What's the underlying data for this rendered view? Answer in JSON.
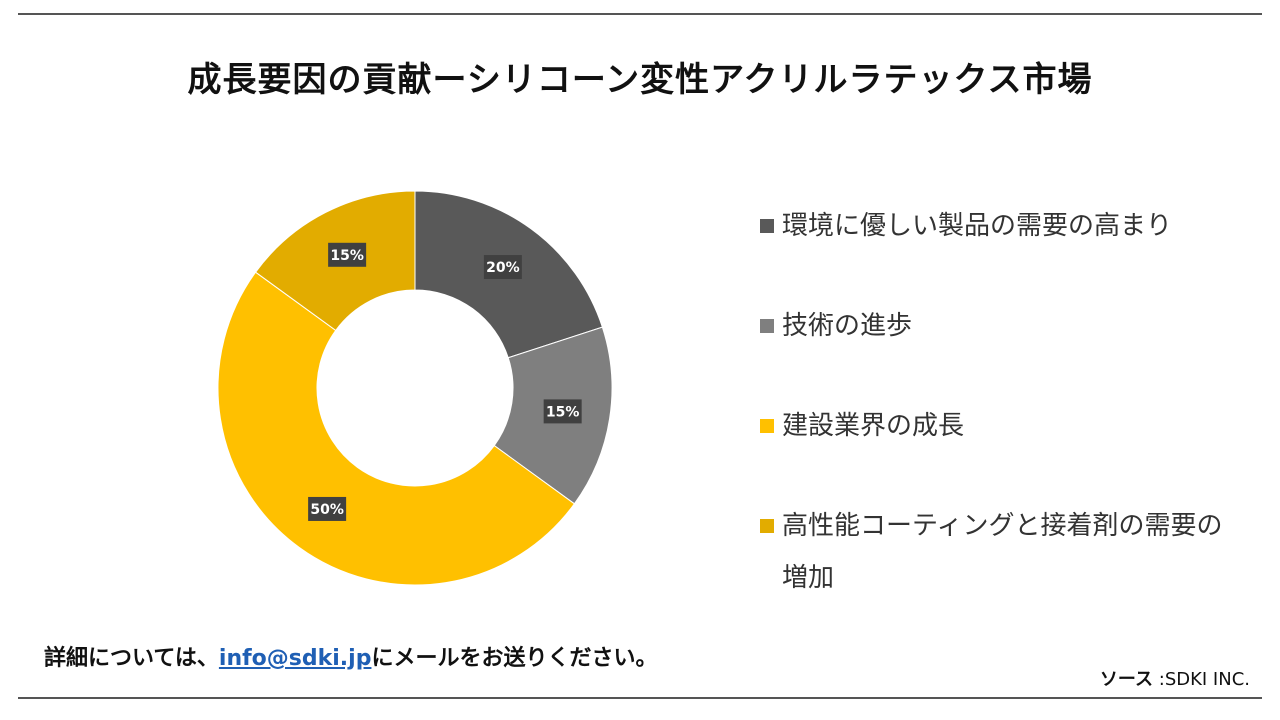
{
  "title": "成長要因の貢献ーシリコーン変性アクリルラテックス市場",
  "chart_data": {
    "type": "pie",
    "donut": true,
    "categories": [
      "環境に優しい製品の需要の高まり",
      "技術の進歩",
      "建設業界の成長",
      "高性能コーティングと接着剤の需要の増加"
    ],
    "values": [
      20,
      15,
      50,
      15
    ],
    "data_labels": [
      "20%",
      "15%",
      "50%",
      "15%"
    ],
    "colors": [
      "#595959",
      "#7f7f7f",
      "#ffc000",
      "#e2ac00"
    ],
    "legend": "right"
  },
  "footer": {
    "prefix": "詳細については、",
    "email": "info@sdki.jp",
    "suffix": "にメールをお送りください。"
  },
  "source": {
    "label": "ソース",
    "value": "SDKI INC."
  }
}
